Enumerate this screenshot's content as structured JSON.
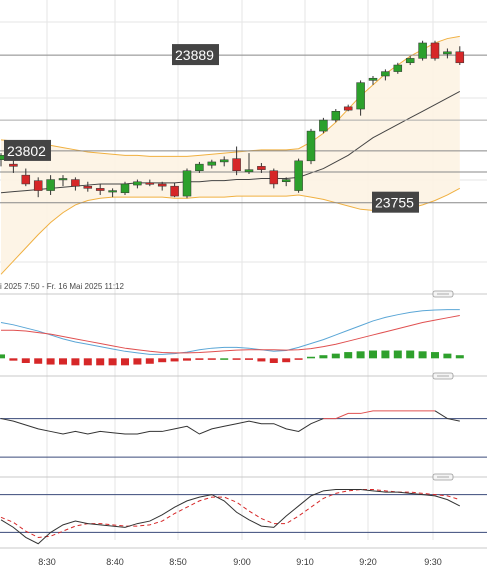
{
  "chart_data": {
    "type": "candlestick",
    "range_label": "i 2025 7:50 - Fr. 16 Mai 2025 11:12",
    "price_labels": [
      "23889",
      "23802",
      "23755"
    ],
    "time_labels": [
      "8:30",
      "8:40",
      "8:50",
      "9:00",
      "9:10",
      "9:20",
      "9:30"
    ],
    "horizontal_levels": [
      23889,
      23802,
      23755
    ],
    "colors": {
      "up": "#2ca02c",
      "down": "#d62728",
      "bollinger": "#f0b040",
      "sma": "#444444",
      "macd_line": "#5aa6d6",
      "signal_line": "#e05050",
      "grid": "#e6e6e6"
    },
    "candles": [
      {
        "o": 23794,
        "h": 23800,
        "l": 23788,
        "c": 23798
      },
      {
        "o": 23790,
        "h": 23796,
        "l": 23782,
        "c": 23788
      },
      {
        "o": 23780,
        "h": 23786,
        "l": 23770,
        "c": 23772
      },
      {
        "o": 23775,
        "h": 23778,
        "l": 23760,
        "c": 23766
      },
      {
        "o": 23766,
        "h": 23780,
        "l": 23762,
        "c": 23776
      },
      {
        "o": 23776,
        "h": 23780,
        "l": 23770,
        "c": 23777
      },
      {
        "o": 23776,
        "h": 23778,
        "l": 23766,
        "c": 23770
      },
      {
        "o": 23770,
        "h": 23774,
        "l": 23765,
        "c": 23768
      },
      {
        "o": 23768,
        "h": 23772,
        "l": 23762,
        "c": 23766
      },
      {
        "o": 23766,
        "h": 23768,
        "l": 23760,
        "c": 23766
      },
      {
        "o": 23764,
        "h": 23774,
        "l": 23762,
        "c": 23772
      },
      {
        "o": 23771,
        "h": 23776,
        "l": 23768,
        "c": 23774
      },
      {
        "o": 23773,
        "h": 23776,
        "l": 23770,
        "c": 23772
      },
      {
        "o": 23772,
        "h": 23774,
        "l": 23766,
        "c": 23770
      },
      {
        "o": 23770,
        "h": 23773,
        "l": 23760,
        "c": 23761
      },
      {
        "o": 23761,
        "h": 23786,
        "l": 23759,
        "c": 23784
      },
      {
        "o": 23784,
        "h": 23792,
        "l": 23782,
        "c": 23790
      },
      {
        "o": 23789,
        "h": 23794,
        "l": 23786,
        "c": 23792
      },
      {
        "o": 23792,
        "h": 23797,
        "l": 23788,
        "c": 23794
      },
      {
        "o": 23795,
        "h": 23806,
        "l": 23780,
        "c": 23784
      },
      {
        "o": 23783,
        "h": 23800,
        "l": 23781,
        "c": 23785
      },
      {
        "o": 23788,
        "h": 23791,
        "l": 23782,
        "c": 23785
      },
      {
        "o": 23784,
        "h": 23786,
        "l": 23768,
        "c": 23772
      },
      {
        "o": 23774,
        "h": 23778,
        "l": 23770,
        "c": 23776
      },
      {
        "o": 23766,
        "h": 23795,
        "l": 23764,
        "c": 23793
      },
      {
        "o": 23793,
        "h": 23822,
        "l": 23790,
        "c": 23820
      },
      {
        "o": 23820,
        "h": 23832,
        "l": 23818,
        "c": 23830
      },
      {
        "o": 23830,
        "h": 23840,
        "l": 23828,
        "c": 23838
      },
      {
        "o": 23842,
        "h": 23844,
        "l": 23838,
        "c": 23839
      },
      {
        "o": 23840,
        "h": 23866,
        "l": 23834,
        "c": 23864
      },
      {
        "o": 23866,
        "h": 23870,
        "l": 23862,
        "c": 23868
      },
      {
        "o": 23870,
        "h": 23876,
        "l": 23866,
        "c": 23874
      },
      {
        "o": 23874,
        "h": 23882,
        "l": 23872,
        "c": 23880
      },
      {
        "o": 23882,
        "h": 23888,
        "l": 23880,
        "c": 23886
      },
      {
        "o": 23886,
        "h": 23902,
        "l": 23884,
        "c": 23900
      },
      {
        "o": 23900,
        "h": 23902,
        "l": 23884,
        "c": 23886
      },
      {
        "o": 23890,
        "h": 23895,
        "l": 23886,
        "c": 23892
      },
      {
        "o": 23892,
        "h": 23897,
        "l": 23880,
        "c": 23882
      }
    ],
    "bollinger_upper": [
      23812,
      23811,
      23810,
      23809,
      23807,
      23805,
      23803,
      23801,
      23800,
      23799,
      23798,
      23798,
      23797,
      23797,
      23797,
      23797,
      23798,
      23799,
      23800,
      23801,
      23802,
      23803,
      23803,
      23803,
      23804,
      23810,
      23818,
      23828,
      23840,
      23852,
      23862,
      23872,
      23880,
      23888,
      23894,
      23900,
      23904,
      23906
    ],
    "bollinger_lower": [
      23690,
      23702,
      23714,
      23726,
      23737,
      23746,
      23753,
      23757,
      23759,
      23760,
      23760,
      23760,
      23760,
      23760,
      23759,
      23759,
      23760,
      23760,
      23760,
      23761,
      23761,
      23761,
      23761,
      23761,
      23762,
      23760,
      23758,
      23755,
      23752,
      23749,
      23748,
      23748,
      23748,
      23750,
      23753,
      23757,
      23762,
      23768
    ],
    "sma": [
      23764,
      23765,
      23766,
      23767,
      23768,
      23769,
      23770,
      23771,
      23772,
      23772,
      23772,
      23773,
      23773,
      23773,
      23773,
      23774,
      23774,
      23775,
      23775,
      23776,
      23776,
      23777,
      23777,
      23777,
      23778,
      23782,
      23786,
      23792,
      23798,
      23806,
      23814,
      23820,
      23826,
      23832,
      23838,
      23844,
      23850,
      23856
    ],
    "macd_line": [
      0.92,
      0.86,
      0.78,
      0.7,
      0.6,
      0.5,
      0.42,
      0.36,
      0.3,
      0.24,
      0.18,
      0.14,
      0.1,
      0.1,
      0.12,
      0.16,
      0.22,
      0.26,
      0.28,
      0.28,
      0.26,
      0.22,
      0.18,
      0.2,
      0.28,
      0.38,
      0.48,
      0.6,
      0.72,
      0.84,
      0.96,
      1.05,
      1.12,
      1.18,
      1.22,
      1.24,
      1.25,
      1.25
    ],
    "signal_line": [
      0.72,
      0.72,
      0.7,
      0.66,
      0.62,
      0.56,
      0.5,
      0.44,
      0.38,
      0.32,
      0.26,
      0.22,
      0.18,
      0.15,
      0.14,
      0.14,
      0.15,
      0.17,
      0.19,
      0.21,
      0.22,
      0.22,
      0.22,
      0.21,
      0.22,
      0.25,
      0.3,
      0.36,
      0.44,
      0.52,
      0.6,
      0.68,
      0.76,
      0.84,
      0.92,
      0.98,
      1.04,
      1.1
    ],
    "macd_histogram": [
      0.1,
      -0.06,
      -0.12,
      -0.14,
      -0.16,
      -0.16,
      -0.18,
      -0.18,
      -0.18,
      -0.18,
      -0.18,
      -0.16,
      -0.14,
      -0.1,
      -0.08,
      -0.06,
      -0.04,
      -0.02,
      0.0,
      -0.02,
      -0.04,
      -0.08,
      -0.12,
      -0.1,
      -0.02,
      0.04,
      0.08,
      0.12,
      0.16,
      0.18,
      0.2,
      0.2,
      0.2,
      0.2,
      0.18,
      0.16,
      0.12,
      0.08
    ],
    "oscillator_main": [
      30,
      28,
      25,
      22,
      20,
      18,
      20,
      18,
      20,
      19,
      18,
      18,
      20,
      20,
      22,
      24,
      18,
      22,
      24,
      26,
      28,
      26,
      26,
      22,
      20,
      26,
      30,
      30,
      34,
      34,
      36,
      36,
      36,
      36,
      36,
      36,
      30,
      28
    ],
    "oscillator_upper_level": 30,
    "oscillator_lower_level": 0,
    "stoch_k": [
      40,
      28,
      12,
      2,
      20,
      32,
      38,
      34,
      32,
      30,
      28,
      34,
      38,
      48,
      60,
      70,
      76,
      80,
      70,
      52,
      40,
      30,
      28,
      46,
      62,
      78,
      86,
      88,
      88,
      88,
      86,
      84,
      84,
      82,
      80,
      78,
      72,
      62
    ],
    "stoch_d": [
      44,
      36,
      22,
      12,
      14,
      22,
      30,
      34,
      34,
      32,
      30,
      30,
      32,
      38,
      50,
      60,
      70,
      76,
      76,
      68,
      54,
      42,
      34,
      34,
      46,
      60,
      74,
      82,
      86,
      88,
      88,
      86,
      84,
      84,
      82,
      80,
      78,
      72
    ],
    "stoch_levels": [
      80,
      20
    ]
  }
}
